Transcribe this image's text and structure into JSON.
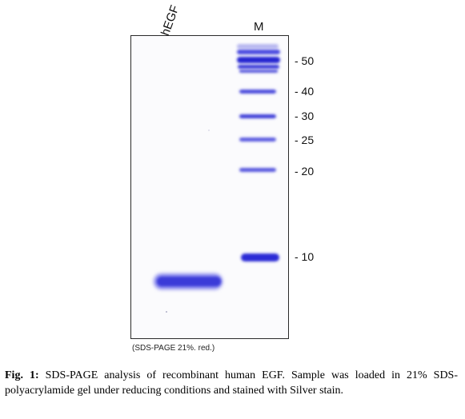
{
  "lanes": {
    "sample_label": "hEGF",
    "marker_label": "M"
  },
  "marker_bands": [
    "50",
    "40",
    "30",
    "25",
    "20",
    "10"
  ],
  "marker_label_prefix": "- ",
  "gel_note": "(SDS-PAGE 21%. red.)",
  "caption": {
    "label": "Fig. 1:",
    "text": "SDS-PAGE analysis of recombinant human EGF. Sample was loaded in 21% SDS-polyacrylamide gel under reducing conditions and stained with Silver stain."
  },
  "colors": {
    "band": "#2a2ad6",
    "band_light": "#6a6ae6"
  }
}
